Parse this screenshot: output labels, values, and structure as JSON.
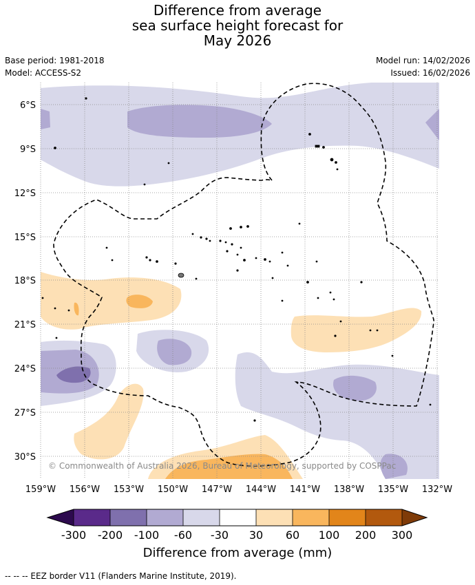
{
  "title": {
    "line1": "Difference from average",
    "line2": "sea surface height forecast for",
    "line3": "May 2026"
  },
  "meta": {
    "base_period": "Base period: 1981-2018",
    "model": "Model: ACCESS-S2",
    "model_run": "Model run: 14/02/2026",
    "issued": "Issued: 16/02/2026"
  },
  "map": {
    "lat_labels": [
      "6°S",
      "9°S",
      "12°S",
      "15°S",
      "18°S",
      "21°S",
      "24°S",
      "27°S",
      "30°S"
    ],
    "lon_labels": [
      "159°W",
      "156°W",
      "153°W",
      "150°W",
      "147°W",
      "144°W",
      "141°W",
      "138°W",
      "135°W",
      "132°W"
    ],
    "copyright": "© Commonwealth of Australia 2026, Bureau of Meteorology, supported by COSPPac"
  },
  "colorbar": {
    "title": "Difference from average (mm)",
    "ticks": [
      "-300",
      "-200",
      "-100",
      "-60",
      "-30",
      "30",
      "60",
      "100",
      "200",
      "300"
    ],
    "colors": {
      "below_min": "#2d0a4e",
      "m300_m200": "#5a2a8a",
      "m200_m100": "#7f70ad",
      "m100_m60": "#b1aad2",
      "m60_m30": "#d8d8ea",
      "m30_30": "#ffffff",
      "p30_60": "#fde0b5",
      "p60_100": "#f9b65d",
      "p100_200": "#e2851a",
      "p200_300": "#b2590e",
      "above_max": "#7f3b08"
    }
  },
  "legend": {
    "eez": "--  --  -- EEZ border V11 (Flanders Marine Institute, 2019)."
  }
}
